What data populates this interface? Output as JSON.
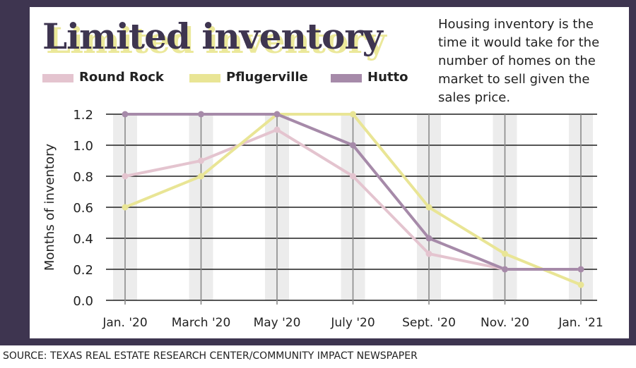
{
  "title": "Limited inventory",
  "note": "Housing inventory is the time it would take for the number of homes on the market to sell given the sales price.",
  "source": "SOURCE: TEXAS REAL ESTATE RESEARCH CENTER/COMMUNITY IMPACT NEWSPAPER",
  "colors": {
    "background": "#3e3550",
    "title_shadow": "#ebe89a",
    "column_band": "#ececec",
    "grid": "#1e1e1e"
  },
  "chart_data": {
    "type": "line",
    "ylabel": "Months of inventory",
    "xlabel": "",
    "categories": [
      "Jan. '20",
      "March '20",
      "May '20",
      "July '20",
      "Sept. '20",
      "Nov. '20",
      "Jan. '21"
    ],
    "ylim": [
      0,
      1.2
    ],
    "yticks": [
      "0.0",
      "0.2",
      "0.4",
      "0.6",
      "0.8",
      "1.0",
      "1.2"
    ],
    "grid": true,
    "legend_position": "top-left",
    "series": [
      {
        "name": "Round Rock",
        "color": "#e4c4cf",
        "values": [
          0.8,
          0.9,
          1.1,
          0.8,
          0.3,
          0.2,
          0.2
        ]
      },
      {
        "name": "Pflugerville",
        "color": "#e9e595",
        "values": [
          0.6,
          0.8,
          1.2,
          1.2,
          0.6,
          0.3,
          0.1
        ]
      },
      {
        "name": "Hutto",
        "color": "#a68aa9",
        "values": [
          1.2,
          1.2,
          1.2,
          1.0,
          0.4,
          0.2,
          0.2
        ]
      }
    ]
  }
}
